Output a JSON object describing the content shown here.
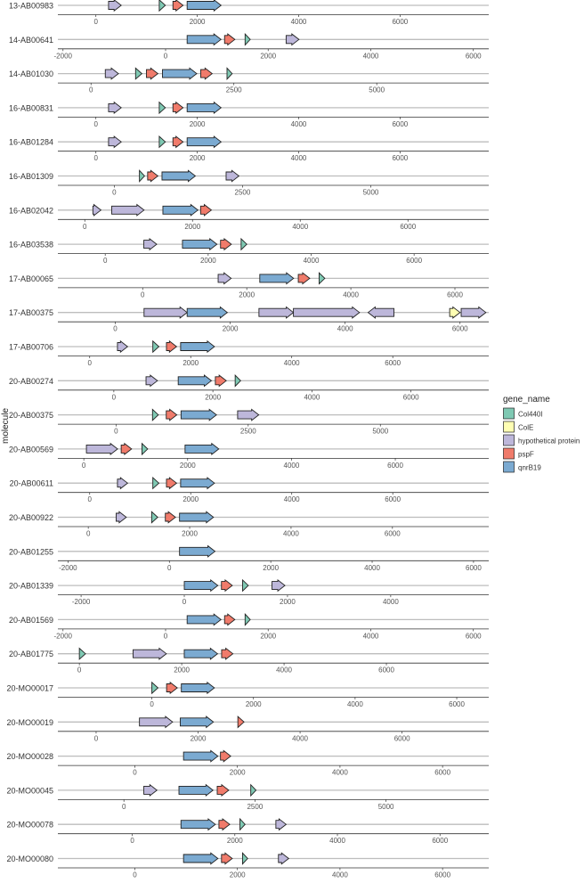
{
  "chart_data": {
    "type": "gene-arrow-map",
    "ylabel": "molecule",
    "legend": {
      "title": "gene_name",
      "position": "right",
      "entries": [
        {
          "name": "Col440I",
          "color": "#7fc9b3"
        },
        {
          "name": "ColE",
          "color": "#ffffb3"
        },
        {
          "name": "hypothetical protein",
          "color": "#bdb7da"
        },
        {
          "name": "pspF",
          "color": "#f07b6b"
        },
        {
          "name": "qnrB19",
          "color": "#7baad1"
        }
      ]
    },
    "molecules": [
      {
        "name": "13-AB00983",
        "ticks": [
          0,
          2000,
          4000,
          6000
        ],
        "xlim": [
          -750,
          7750
        ],
        "genes": [
          {
            "gene": "hypothetical protein",
            "start": 250,
            "end": 500,
            "strand": 1
          },
          {
            "gene": "Col440I",
            "start": 1250,
            "end": 1370,
            "strand": 1
          },
          {
            "gene": "pspF",
            "start": 1520,
            "end": 1720,
            "strand": 1
          },
          {
            "gene": "qnrB19",
            "start": 1800,
            "end": 2470,
            "strand": 1
          }
        ]
      },
      {
        "name": "14-AB00641",
        "ticks": [
          -2000,
          0,
          2000,
          4000,
          6000
        ],
        "xlim": [
          -2100,
          6300
        ],
        "genes": [
          {
            "gene": "qnrB19",
            "start": 420,
            "end": 1080,
            "strand": 1
          },
          {
            "gene": "pspF",
            "start": 1150,
            "end": 1350,
            "strand": 1
          },
          {
            "gene": "Col440I",
            "start": 1550,
            "end": 1650,
            "strand": 1
          },
          {
            "gene": "hypothetical protein",
            "start": 2350,
            "end": 2600,
            "strand": 1
          }
        ]
      },
      {
        "name": "14-AB01030",
        "ticks": [
          0,
          2500,
          5000
        ],
        "xlim": [
          -580,
          6960
        ],
        "genes": [
          {
            "gene": "hypothetical protein",
            "start": 250,
            "end": 480,
            "strand": 1
          },
          {
            "gene": "Col440I",
            "start": 780,
            "end": 890,
            "strand": 1
          },
          {
            "gene": "pspF",
            "start": 970,
            "end": 1170,
            "strand": 1
          },
          {
            "gene": "qnrB19",
            "start": 1250,
            "end": 1850,
            "strand": 1
          },
          {
            "gene": "pspF",
            "start": 1920,
            "end": 2120,
            "strand": 1
          },
          {
            "gene": "Col440I",
            "start": 2380,
            "end": 2470,
            "strand": 1
          }
        ]
      },
      {
        "name": "16-AB00831",
        "ticks": [
          0,
          2000,
          4000,
          6000
        ],
        "xlim": [
          -750,
          7750
        ],
        "genes": [
          {
            "gene": "hypothetical protein",
            "start": 250,
            "end": 500,
            "strand": 1
          },
          {
            "gene": "Col440I",
            "start": 1250,
            "end": 1370,
            "strand": 1
          },
          {
            "gene": "pspF",
            "start": 1520,
            "end": 1720,
            "strand": 1
          },
          {
            "gene": "qnrB19",
            "start": 1800,
            "end": 2470,
            "strand": 1
          }
        ]
      },
      {
        "name": "16-AB01284",
        "ticks": [
          0,
          2000,
          4000,
          6000
        ],
        "xlim": [
          -750,
          7750
        ],
        "genes": [
          {
            "gene": "hypothetical protein",
            "start": 250,
            "end": 500,
            "strand": 1
          },
          {
            "gene": "Col440I",
            "start": 1250,
            "end": 1370,
            "strand": 1
          },
          {
            "gene": "pspF",
            "start": 1520,
            "end": 1720,
            "strand": 1
          },
          {
            "gene": "qnrB19",
            "start": 1800,
            "end": 2470,
            "strand": 1
          }
        ]
      },
      {
        "name": "16-AB01309",
        "ticks": [
          0,
          2500,
          5000
        ],
        "xlim": [
          -1100,
          7300
        ],
        "genes": [
          {
            "gene": "Col440I",
            "start": 490,
            "end": 590,
            "strand": 1
          },
          {
            "gene": "pspF",
            "start": 650,
            "end": 850,
            "strand": 1
          },
          {
            "gene": "qnrB19",
            "start": 930,
            "end": 1580,
            "strand": 1
          },
          {
            "gene": "hypothetical protein",
            "start": 2180,
            "end": 2430,
            "strand": 1
          }
        ]
      },
      {
        "name": "16-AB02042",
        "ticks": [
          0,
          2000,
          4000,
          6000
        ],
        "xlim": [
          -500,
          7500
        ],
        "genes": [
          {
            "gene": "hypothetical protein",
            "start": 150,
            "end": 300,
            "strand": 1
          },
          {
            "gene": "hypothetical protein",
            "start": 500,
            "end": 1100,
            "strand": 1
          },
          {
            "gene": "qnrB19",
            "start": 1450,
            "end": 2100,
            "strand": 1
          },
          {
            "gene": "pspF",
            "start": 2150,
            "end": 2350,
            "strand": 1
          }
        ]
      },
      {
        "name": "16-AB03538",
        "ticks": [
          0,
          2000,
          4000,
          6000
        ],
        "xlim": [
          -920,
          7450
        ],
        "genes": [
          {
            "gene": "hypothetical protein",
            "start": 750,
            "end": 1000,
            "strand": 1
          },
          {
            "gene": "qnrB19",
            "start": 1500,
            "end": 2170,
            "strand": 1
          },
          {
            "gene": "pspF",
            "start": 2240,
            "end": 2450,
            "strand": 1
          },
          {
            "gene": "Col440I",
            "start": 2640,
            "end": 2750,
            "strand": 1
          }
        ]
      },
      {
        "name": "17-AB00065",
        "ticks": [
          0,
          2000,
          4000,
          6000
        ],
        "xlim": [
          -1630,
          6650
        ],
        "genes": [
          {
            "gene": "hypothetical protein",
            "start": 1450,
            "end": 1700,
            "strand": 1
          },
          {
            "gene": "qnrB19",
            "start": 2250,
            "end": 2900,
            "strand": 1
          },
          {
            "gene": "pspF",
            "start": 2990,
            "end": 3210,
            "strand": 1
          },
          {
            "gene": "Col440I",
            "start": 3390,
            "end": 3500,
            "strand": 1
          }
        ]
      },
      {
        "name": "17-AB00375",
        "ticks": [
          0,
          2000,
          4000,
          6000
        ],
        "xlim": [
          -1000,
          6500
        ],
        "genes": [
          {
            "gene": "hypothetical protein",
            "start": 500,
            "end": 1250,
            "strand": 1
          },
          {
            "gene": "qnrB19",
            "start": 1250,
            "end": 1950,
            "strand": 1
          },
          {
            "gene": "hypothetical protein",
            "start": 2500,
            "end": 3100,
            "strand": 1
          },
          {
            "gene": "hypothetical protein",
            "start": 3100,
            "end": 4250,
            "strand": 1
          },
          {
            "gene": "hypothetical protein",
            "start": 4400,
            "end": 4850,
            "strand": -1
          },
          {
            "gene": "ColE",
            "start": 5820,
            "end": 6000,
            "strand": 1
          },
          {
            "gene": "hypothetical protein",
            "start": 6020,
            "end": 6450,
            "strand": 1
          }
        ]
      },
      {
        "name": "17-AB00706",
        "ticks": [
          0,
          2000,
          4000,
          6000
        ],
        "xlim": [
          -630,
          7900
        ],
        "genes": [
          {
            "gene": "hypothetical protein",
            "start": 550,
            "end": 750,
            "strand": 1
          },
          {
            "gene": "Col440I",
            "start": 1250,
            "end": 1370,
            "strand": 1
          },
          {
            "gene": "pspF",
            "start": 1520,
            "end": 1720,
            "strand": 1
          },
          {
            "gene": "qnrB19",
            "start": 1800,
            "end": 2470,
            "strand": 1
          }
        ]
      },
      {
        "name": "20-AB00274",
        "ticks": [
          0,
          2000,
          4000,
          6000
        ],
        "xlim": [
          -1130,
          7570
        ],
        "genes": [
          {
            "gene": "hypothetical protein",
            "start": 650,
            "end": 880,
            "strand": 1
          },
          {
            "gene": "qnrB19",
            "start": 1300,
            "end": 1970,
            "strand": 1
          },
          {
            "gene": "pspF",
            "start": 2050,
            "end": 2270,
            "strand": 1
          },
          {
            "gene": "Col440I",
            "start": 2450,
            "end": 2560,
            "strand": 1
          }
        ]
      },
      {
        "name": "20-AB00375",
        "ticks": [
          0,
          2500,
          5000
        ],
        "xlim": [
          -1100,
          7050
        ],
        "genes": [
          {
            "gene": "Col440I",
            "start": 690,
            "end": 800,
            "strand": 1
          },
          {
            "gene": "pspF",
            "start": 950,
            "end": 1150,
            "strand": 1
          },
          {
            "gene": "qnrB19",
            "start": 1230,
            "end": 1900,
            "strand": 1
          },
          {
            "gene": "hypothetical protein",
            "start": 2300,
            "end": 2700,
            "strand": 1
          }
        ]
      },
      {
        "name": "20-AB00569",
        "ticks": [
          0,
          2000,
          4000,
          6000
        ],
        "xlim": [
          -500,
          7800
        ],
        "genes": [
          {
            "gene": "hypothetical protein",
            "start": 50,
            "end": 650,
            "strand": 1
          },
          {
            "gene": "pspF",
            "start": 720,
            "end": 920,
            "strand": 1
          },
          {
            "gene": "Col440I",
            "start": 1120,
            "end": 1230,
            "strand": 1
          },
          {
            "gene": "qnrB19",
            "start": 1950,
            "end": 2600,
            "strand": 1
          }
        ]
      },
      {
        "name": "20-AB00611",
        "ticks": [
          0,
          2000,
          4000,
          6000
        ],
        "xlim": [
          -630,
          7900
        ],
        "genes": [
          {
            "gene": "hypothetical protein",
            "start": 550,
            "end": 750,
            "strand": 1
          },
          {
            "gene": "Col440I",
            "start": 1250,
            "end": 1370,
            "strand": 1
          },
          {
            "gene": "pspF",
            "start": 1520,
            "end": 1720,
            "strand": 1
          },
          {
            "gene": "qnrB19",
            "start": 1800,
            "end": 2470,
            "strand": 1
          }
        ]
      },
      {
        "name": "20-AB00922",
        "ticks": [
          0,
          2000,
          4000,
          6000
        ],
        "xlim": [
          -600,
          7900
        ],
        "genes": [
          {
            "gene": "hypothetical protein",
            "start": 550,
            "end": 750,
            "strand": 1
          },
          {
            "gene": "Col440I",
            "start": 1250,
            "end": 1370,
            "strand": 1
          },
          {
            "gene": "pspF",
            "start": 1520,
            "end": 1720,
            "strand": 1
          },
          {
            "gene": "qnrB19",
            "start": 1800,
            "end": 2470,
            "strand": 1
          }
        ]
      },
      {
        "name": "20-AB01255",
        "ticks": [
          -2000,
          0,
          2000,
          4000,
          6000
        ],
        "xlim": [
          -2200,
          6300
        ],
        "genes": [
          {
            "gene": "qnrB19",
            "start": 200,
            "end": 900,
            "strand": 1
          }
        ]
      },
      {
        "name": "20-AB01339",
        "ticks": [
          -2000,
          0,
          2000,
          4000
        ],
        "xlim": [
          -2450,
          5900
        ],
        "genes": [
          {
            "gene": "qnrB19",
            "start": 0,
            "end": 650,
            "strand": 1
          },
          {
            "gene": "pspF",
            "start": 720,
            "end": 930,
            "strand": 1
          },
          {
            "gene": "Col440I",
            "start": 1130,
            "end": 1240,
            "strand": 1
          },
          {
            "gene": "hypothetical protein",
            "start": 1700,
            "end": 1950,
            "strand": 1
          }
        ]
      },
      {
        "name": "20-AB01569",
        "ticks": [
          -2000,
          0,
          2000,
          4000,
          6000
        ],
        "xlim": [
          -2100,
          6300
        ],
        "genes": [
          {
            "gene": "qnrB19",
            "start": 420,
            "end": 1080,
            "strand": 1
          },
          {
            "gene": "pspF",
            "start": 1150,
            "end": 1350,
            "strand": 1
          },
          {
            "gene": "Col440I",
            "start": 1550,
            "end": 1650,
            "strand": 1
          }
        ]
      },
      {
        "name": "20-AB01775",
        "ticks": [
          0,
          2000,
          4000,
          6000
        ],
        "xlim": [
          -420,
          8000
        ],
        "genes": [
          {
            "gene": "Col440I",
            "start": 0,
            "end": 120,
            "strand": 1
          },
          {
            "gene": "hypothetical protein",
            "start": 1050,
            "end": 1700,
            "strand": 1
          },
          {
            "gene": "qnrB19",
            "start": 2050,
            "end": 2700,
            "strand": 1
          },
          {
            "gene": "pspF",
            "start": 2780,
            "end": 3000,
            "strand": 1
          }
        ]
      },
      {
        "name": "20-MO00017",
        "ticks": [
          0,
          2000,
          4000,
          6000
        ],
        "xlim": [
          -1850,
          6630
        ],
        "genes": [
          {
            "gene": "Col440I",
            "start": 0,
            "end": 120,
            "strand": 1
          },
          {
            "gene": "pspF",
            "start": 290,
            "end": 500,
            "strand": 1
          },
          {
            "gene": "qnrB19",
            "start": 580,
            "end": 1230,
            "strand": 1
          }
        ]
      },
      {
        "name": "20-MO00019",
        "ticks": [
          0,
          2000,
          4000,
          6000
        ],
        "xlim": [
          -750,
          7700
        ],
        "genes": [
          {
            "gene": "hypothetical protein",
            "start": 850,
            "end": 1500,
            "strand": 1
          },
          {
            "gene": "qnrB19",
            "start": 1650,
            "end": 2300,
            "strand": 1
          },
          {
            "gene": "pspF",
            "start": 2780,
            "end": 2900,
            "strand": 1
          }
        ]
      },
      {
        "name": "20-MO00028",
        "ticks": [
          0,
          2000,
          4000,
          6000
        ],
        "xlim": [
          -1500,
          6900
        ],
        "genes": [
          {
            "gene": "qnrB19",
            "start": 950,
            "end": 1620,
            "strand": 1
          },
          {
            "gene": "pspF",
            "start": 1670,
            "end": 1870,
            "strand": 1
          }
        ]
      },
      {
        "name": "20-MO00045",
        "ticks": [
          0,
          2500,
          5000
        ],
        "xlim": [
          -1260,
          6960
        ],
        "genes": [
          {
            "gene": "hypothetical protein",
            "start": 380,
            "end": 630,
            "strand": 1
          },
          {
            "gene": "qnrB19",
            "start": 1050,
            "end": 1700,
            "strand": 1
          },
          {
            "gene": "pspF",
            "start": 1780,
            "end": 2000,
            "strand": 1
          },
          {
            "gene": "Col440I",
            "start": 2420,
            "end": 2520,
            "strand": 1
          }
        ]
      },
      {
        "name": "20-MO00078",
        "ticks": [
          0,
          2000,
          4000,
          6000
        ],
        "xlim": [
          -1450,
          6950
        ],
        "genes": [
          {
            "gene": "qnrB19",
            "start": 950,
            "end": 1620,
            "strand": 1
          },
          {
            "gene": "pspF",
            "start": 1690,
            "end": 1900,
            "strand": 1
          },
          {
            "gene": "Col440I",
            "start": 2100,
            "end": 2200,
            "strand": 1
          },
          {
            "gene": "hypothetical protein",
            "start": 2800,
            "end": 3000,
            "strand": 1
          }
        ]
      },
      {
        "name": "20-MO00080",
        "ticks": [
          0,
          2000,
          4000,
          6000
        ],
        "xlim": [
          -1500,
          6900
        ],
        "genes": [
          {
            "gene": "qnrB19",
            "start": 950,
            "end": 1620,
            "strand": 1
          },
          {
            "gene": "pspF",
            "start": 1690,
            "end": 1900,
            "strand": 1
          },
          {
            "gene": "Col440I",
            "start": 2100,
            "end": 2200,
            "strand": 1
          },
          {
            "gene": "hypothetical protein",
            "start": 2800,
            "end": 3000,
            "strand": 1
          }
        ]
      }
    ]
  }
}
